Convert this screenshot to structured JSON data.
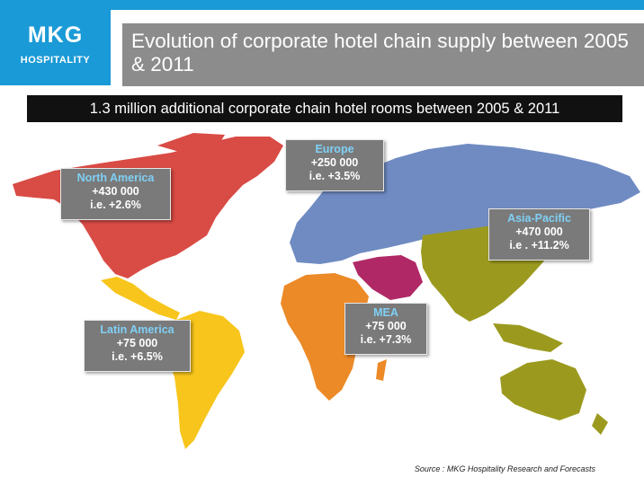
{
  "header": {
    "logo_mark": "MKG",
    "logo_sub": "HOSPITALITY",
    "title": "Evolution of corporate hotel chain supply between 2005 & 2011",
    "subtitle": "1.3 million additional corporate chain hotel rooms between 2005 & 2011"
  },
  "colors": {
    "brand_blue": "#1a9ad6",
    "north_america": "#d94b45",
    "latin_america": "#f7c51b",
    "europe_russia": "#6f8bc2",
    "asia_pacific": "#9b9a1f",
    "mea": "#ec8a27",
    "middle_east": "#b02966"
  },
  "regions": [
    {
      "id": "north_america",
      "name": "North America",
      "rooms": "+430 000",
      "growth": "i.e. +2.6%"
    },
    {
      "id": "europe",
      "name": "Europe",
      "rooms": "+250 000",
      "growth": "i.e. +3.5%"
    },
    {
      "id": "asia_pacific",
      "name": "Asia-Pacific",
      "rooms": "+470 000",
      "growth": "i.e . +11.2%"
    },
    {
      "id": "mea",
      "name": "MEA",
      "rooms": "+75 000",
      "growth": "i.e. +7.3%"
    },
    {
      "id": "latin_america",
      "name": "Latin America",
      "rooms": "+75 000",
      "growth": "i.e. +6.5%"
    }
  ],
  "source": "Source : MKG Hospitality Research and Forecasts"
}
